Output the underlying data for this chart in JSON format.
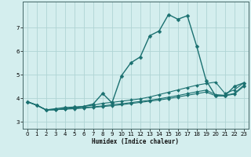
{
  "xlabel": "Humidex (Indice chaleur)",
  "xlim": [
    -0.5,
    23.5
  ],
  "ylim": [
    2.7,
    8.1
  ],
  "xticks": [
    0,
    1,
    2,
    3,
    4,
    5,
    6,
    7,
    8,
    9,
    10,
    11,
    12,
    13,
    14,
    15,
    16,
    17,
    18,
    19,
    20,
    21,
    22,
    23
  ],
  "yticks": [
    3,
    4,
    5,
    6,
    7
  ],
  "bg_color": "#d4eeee",
  "grid_color": "#b0d4d4",
  "line_color": "#1a7070",
  "series": [
    {
      "x": [
        0,
        1,
        2,
        3,
        4,
        5,
        6,
        7,
        8,
        9,
        10,
        11,
        12,
        13,
        14,
        15,
        16,
        17,
        18,
        19,
        20,
        21,
        22,
        23
      ],
      "y": [
        3.85,
        3.7,
        3.5,
        3.55,
        3.6,
        3.62,
        3.65,
        3.75,
        4.2,
        3.8,
        4.95,
        5.5,
        5.75,
        6.65,
        6.85,
        7.55,
        7.35,
        7.5,
        6.2,
        4.75,
        4.1,
        4.1,
        4.5,
        4.65
      ],
      "lw": 1.0,
      "markersize": 2.5
    },
    {
      "x": [
        0,
        1,
        2,
        3,
        4,
        5,
        6,
        7,
        8,
        9,
        10,
        11,
        12,
        13,
        14,
        15,
        16,
        17,
        18,
        19,
        20,
        21,
        22,
        23
      ],
      "y": [
        3.85,
        3.7,
        3.5,
        3.5,
        3.55,
        3.6,
        3.65,
        3.7,
        3.78,
        3.82,
        3.87,
        3.92,
        3.97,
        4.05,
        4.15,
        4.25,
        4.35,
        4.45,
        4.55,
        4.62,
        4.68,
        4.2,
        4.35,
        4.65
      ],
      "lw": 0.8,
      "markersize": 2.0
    },
    {
      "x": [
        0,
        1,
        2,
        3,
        4,
        5,
        6,
        7,
        8,
        9,
        10,
        11,
        12,
        13,
        14,
        15,
        16,
        17,
        18,
        19,
        20,
        21,
        22,
        23
      ],
      "y": [
        3.85,
        3.7,
        3.5,
        3.52,
        3.54,
        3.57,
        3.6,
        3.63,
        3.67,
        3.72,
        3.76,
        3.81,
        3.86,
        3.91,
        3.97,
        4.04,
        4.11,
        4.19,
        4.27,
        4.34,
        4.15,
        4.12,
        4.2,
        4.55
      ],
      "lw": 0.8,
      "markersize": 2.0
    },
    {
      "x": [
        0,
        1,
        2,
        3,
        4,
        5,
        6,
        7,
        8,
        9,
        10,
        11,
        12,
        13,
        14,
        15,
        16,
        17,
        18,
        19,
        20,
        21,
        22,
        23
      ],
      "y": [
        3.85,
        3.7,
        3.5,
        3.51,
        3.53,
        3.55,
        3.58,
        3.61,
        3.64,
        3.68,
        3.72,
        3.77,
        3.82,
        3.87,
        3.92,
        3.98,
        4.05,
        4.12,
        4.19,
        4.26,
        4.1,
        4.1,
        4.17,
        4.5
      ],
      "lw": 0.8,
      "markersize": 2.0
    }
  ]
}
